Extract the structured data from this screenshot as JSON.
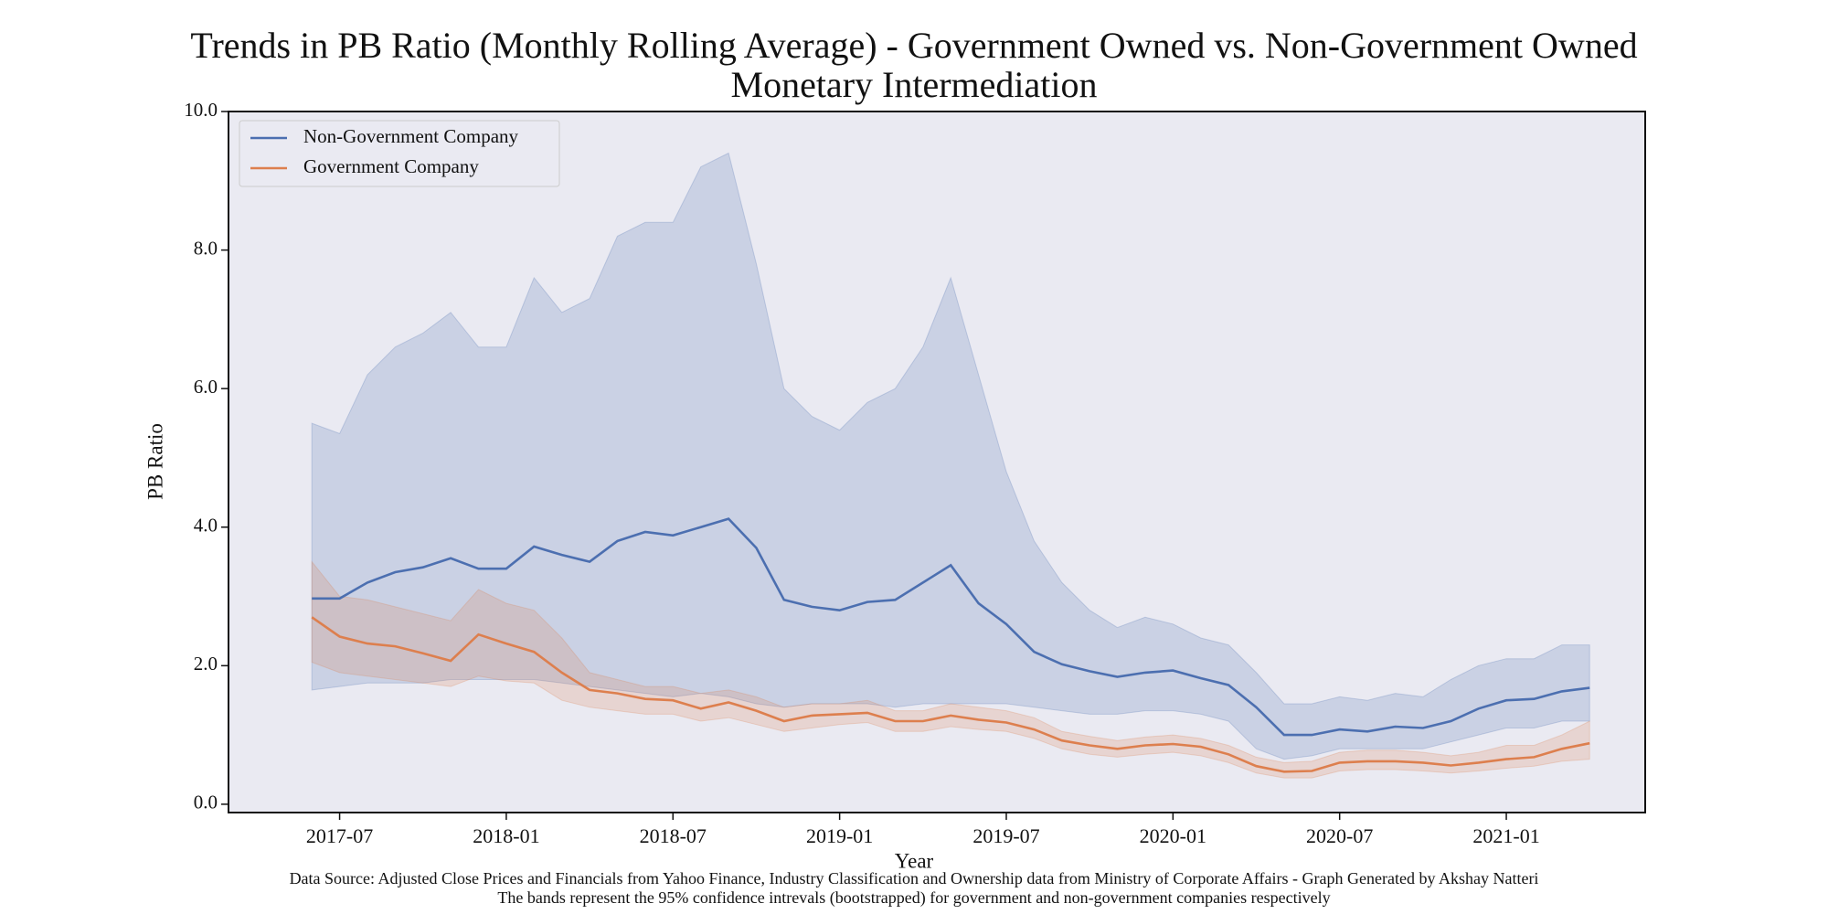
{
  "chart_data": {
    "type": "line",
    "title": "Trends in PB Ratio (Monthly Rolling Average) - Government Owned vs. Non-Government Owned Monetary Intermediation",
    "xlabel": "Year",
    "ylabel": "PB Ratio",
    "source": "Data Source: Adjusted Close Prices and Financials from Yahoo Finance, Industry Classification and Ownership data from Ministry of Corporate Affairs  - Graph Generated by Akshay Natteri",
    "note": "The bands represent the 95% confidence intrevals (bootstrapped) for government and non-government companies respectively",
    "x": [
      "2017-06",
      "2017-07",
      "2017-08",
      "2017-09",
      "2017-10",
      "2017-11",
      "2017-12",
      "2018-01",
      "2018-02",
      "2018-03",
      "2018-04",
      "2018-05",
      "2018-06",
      "2018-07",
      "2018-08",
      "2018-09",
      "2018-10",
      "2018-11",
      "2018-12",
      "2019-01",
      "2019-02",
      "2019-03",
      "2019-04",
      "2019-05",
      "2019-06",
      "2019-07",
      "2019-08",
      "2019-09",
      "2019-10",
      "2019-11",
      "2019-12",
      "2020-01",
      "2020-02",
      "2020-03",
      "2020-04",
      "2020-05",
      "2020-06",
      "2020-07",
      "2020-08",
      "2020-09",
      "2020-10",
      "2020-11",
      "2020-12",
      "2021-01",
      "2021-02",
      "2021-03",
      "2021-04"
    ],
    "xlim": [
      "2017-03",
      "2021-06"
    ],
    "xticks": [
      "2017-07",
      "2018-01",
      "2018-07",
      "2019-01",
      "2019-07",
      "2020-01",
      "2020-07",
      "2021-01"
    ],
    "ylim": [
      -0.12,
      10.0
    ],
    "yticks": [
      {
        "value": 0,
        "label": "0.0"
      },
      {
        "value": 2,
        "label": "2.0"
      },
      {
        "value": 4,
        "label": "4.0"
      },
      {
        "value": 6,
        "label": "6.0"
      },
      {
        "value": 8,
        "label": "8.0"
      },
      {
        "value": 10,
        "label": "10.0"
      }
    ],
    "legend": "upper left",
    "background": "#eaeaf2",
    "series": [
      {
        "name": "Non-Government Company",
        "color": "#4c6fb0",
        "values": [
          2.97,
          2.97,
          3.2,
          3.35,
          3.42,
          3.55,
          3.4,
          3.4,
          3.72,
          3.6,
          3.5,
          3.8,
          3.93,
          3.88,
          4.0,
          4.12,
          3.7,
          2.95,
          2.85,
          2.8,
          2.92,
          2.95,
          3.2,
          3.45,
          2.9,
          2.6,
          2.2,
          2.02,
          1.92,
          1.84,
          1.9,
          1.93,
          1.82,
          1.72,
          1.4,
          1.0,
          1.0,
          1.08,
          1.05,
          1.12,
          1.1,
          1.2,
          1.38,
          1.5,
          1.52,
          1.63,
          1.68
        ],
        "upper": [
          5.5,
          5.35,
          6.2,
          6.6,
          6.8,
          7.1,
          6.6,
          6.6,
          7.6,
          7.1,
          7.3,
          8.2,
          8.4,
          8.4,
          9.2,
          9.4,
          7.8,
          6.0,
          5.6,
          5.4,
          5.8,
          6.0,
          6.6,
          7.6,
          6.2,
          4.8,
          3.8,
          3.2,
          2.8,
          2.55,
          2.7,
          2.6,
          2.4,
          2.3,
          1.9,
          1.45,
          1.45,
          1.55,
          1.5,
          1.6,
          1.55,
          1.8,
          2.0,
          2.1,
          2.1,
          2.3,
          2.3
        ],
        "lower": [
          1.65,
          1.7,
          1.75,
          1.75,
          1.75,
          1.8,
          1.8,
          1.8,
          1.8,
          1.75,
          1.7,
          1.65,
          1.6,
          1.55,
          1.6,
          1.55,
          1.45,
          1.4,
          1.45,
          1.45,
          1.45,
          1.4,
          1.45,
          1.45,
          1.45,
          1.45,
          1.4,
          1.35,
          1.3,
          1.3,
          1.35,
          1.35,
          1.3,
          1.2,
          0.8,
          0.65,
          0.7,
          0.8,
          0.8,
          0.8,
          0.8,
          0.9,
          1.0,
          1.1,
          1.1,
          1.2,
          1.2
        ]
      },
      {
        "name": "Government Company",
        "color": "#dd7f4e",
        "values": [
          2.7,
          2.42,
          2.32,
          2.28,
          2.18,
          2.07,
          2.45,
          2.32,
          2.2,
          1.9,
          1.65,
          1.6,
          1.52,
          1.5,
          1.38,
          1.47,
          1.35,
          1.2,
          1.28,
          1.3,
          1.32,
          1.2,
          1.2,
          1.28,
          1.22,
          1.18,
          1.08,
          0.92,
          0.85,
          0.8,
          0.85,
          0.87,
          0.83,
          0.72,
          0.55,
          0.47,
          0.48,
          0.6,
          0.62,
          0.62,
          0.6,
          0.56,
          0.6,
          0.65,
          0.68,
          0.8,
          0.88
        ],
        "upper": [
          3.5,
          3.0,
          2.95,
          2.85,
          2.75,
          2.65,
          3.1,
          2.9,
          2.8,
          2.4,
          1.9,
          1.8,
          1.7,
          1.7,
          1.6,
          1.65,
          1.55,
          1.4,
          1.45,
          1.45,
          1.5,
          1.35,
          1.35,
          1.45,
          1.4,
          1.35,
          1.25,
          1.05,
          0.98,
          0.92,
          0.97,
          1.0,
          0.95,
          0.85,
          0.68,
          0.6,
          0.62,
          0.75,
          0.78,
          0.78,
          0.75,
          0.7,
          0.75,
          0.85,
          0.85,
          1.0,
          1.2
        ],
        "lower": [
          2.05,
          1.9,
          1.85,
          1.8,
          1.75,
          1.7,
          1.85,
          1.78,
          1.75,
          1.5,
          1.4,
          1.35,
          1.3,
          1.3,
          1.2,
          1.25,
          1.15,
          1.05,
          1.1,
          1.15,
          1.18,
          1.05,
          1.05,
          1.12,
          1.08,
          1.05,
          0.95,
          0.8,
          0.72,
          0.68,
          0.72,
          0.75,
          0.7,
          0.6,
          0.45,
          0.38,
          0.38,
          0.48,
          0.5,
          0.5,
          0.48,
          0.45,
          0.48,
          0.52,
          0.55,
          0.62,
          0.65
        ]
      }
    ]
  }
}
